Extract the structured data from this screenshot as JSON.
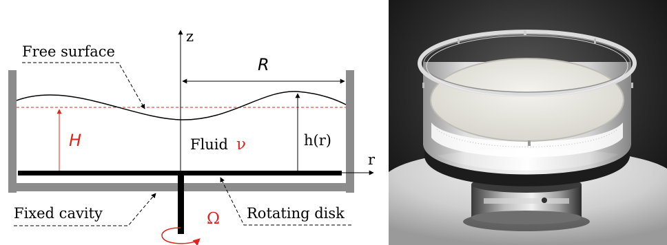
{
  "diagram": {
    "labels": {
      "z_axis": "z",
      "r_axis": "r",
      "radius": "R",
      "free_surface": "Free surface",
      "height": "H",
      "fluid": "Fluid",
      "viscosity": "ν",
      "surface_height": "h(r)",
      "fixed_cavity": "Fixed cavity",
      "rotating_disk": "Rotating disk",
      "omega": "Ω"
    },
    "colors": {
      "walls": "#8c8c8c",
      "disk": "#000000",
      "accent": "#e2231a",
      "text": "#000000"
    }
  },
  "photo": {
    "subject": "transparent cylindrical cavity with white fluid on a rotating base"
  }
}
